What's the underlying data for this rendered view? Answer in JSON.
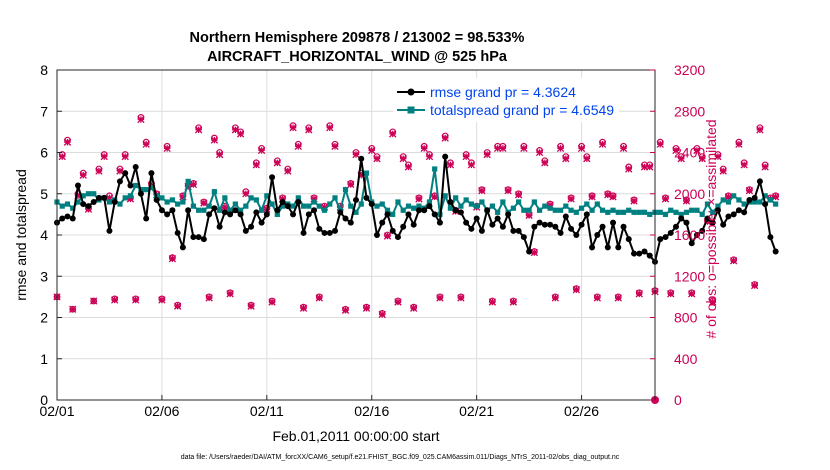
{
  "chart_data": {
    "type": "line",
    "title": "Northern Hemisphere 209878 / 213002 = 98.533%",
    "subtitle": "AIRCRAFT_HORIZONTAL_WIND @ 525 hPa",
    "xlabel": "Feb.01,2011 00:00:00 start",
    "ylabel_left": "rmse and totalspread",
    "ylabel_right": "# of obs: o=possible; ×=assimilated",
    "x_range": [
      0,
      28.5
    ],
    "x_ticks": [
      0,
      5,
      10,
      15,
      20,
      25
    ],
    "x_tick_labels": [
      "02/01",
      "02/06",
      "02/11",
      "02/16",
      "02/21",
      "02/26"
    ],
    "ylim_left": [
      0,
      8
    ],
    "y_ticks_left": [
      0,
      1,
      2,
      3,
      4,
      5,
      6,
      7,
      8
    ],
    "y_tick_labels_left": [
      "0",
      "1",
      "2",
      "3",
      "4",
      "5",
      "6",
      "7",
      "8"
    ],
    "ylim_right": [
      0,
      3200
    ],
    "y_ticks_right": [
      0,
      400,
      800,
      1200,
      1600,
      2000,
      2400,
      2800,
      3200
    ],
    "y_tick_labels_right": [
      "0",
      "400",
      "800",
      "1200",
      "1600",
      "2000",
      "2400",
      "2800",
      "3200"
    ],
    "x_start": 0,
    "x_step": 0.25,
    "series": [
      {
        "name": "rmse grand pr = 4.3624",
        "axis": "left",
        "color": "#000000",
        "values": [
          4.3,
          4.4,
          4.45,
          4.4,
          5.2,
          4.75,
          4.7,
          4.8,
          4.9,
          4.9,
          4.1,
          4.8,
          5.3,
          5.5,
          5.2,
          5.65,
          5.0,
          4.4,
          5.5,
          4.85,
          4.6,
          4.5,
          4.6,
          4.05,
          3.7,
          4.6,
          3.95,
          3.95,
          3.9,
          4.5,
          4.65,
          4.2,
          4.55,
          4.5,
          4.6,
          4.5,
          4.1,
          4.2,
          4.55,
          4.3,
          4.5,
          5.4,
          4.6,
          4.8,
          4.7,
          4.5,
          4.8,
          4.05,
          4.5,
          4.6,
          4.15,
          4.05,
          4.05,
          4.1,
          4.55,
          4.4,
          4.3,
          4.85,
          5.85,
          4.9,
          4.75,
          4.0,
          4.3,
          4.5,
          4.1,
          3.95,
          4.2,
          4.5,
          4.25,
          4.6,
          4.6,
          4.7,
          4.5,
          4.3,
          5.9,
          4.8,
          4.6,
          4.55,
          4.3,
          4.15,
          4.4,
          4.1,
          4.6,
          4.25,
          4.4,
          4.2,
          4.5,
          4.1,
          4.1,
          3.95,
          3.6,
          4.2,
          4.3,
          4.25,
          4.25,
          4.2,
          4.05,
          4.45,
          4.15,
          4.0,
          4.25,
          4.5,
          3.7,
          4.0,
          4.2,
          3.7,
          4.3,
          3.7,
          4.2,
          3.9,
          3.55,
          3.55,
          3.6,
          3.5,
          3.35,
          3.9,
          3.95,
          4.05,
          4.2,
          4.4,
          4.3,
          3.8,
          4.0,
          4.1,
          4.4,
          4.3,
          4.6,
          4.25,
          4.45,
          4.5,
          4.6,
          4.55,
          4.85,
          4.9,
          5.3,
          4.75,
          3.95,
          3.6
        ]
      },
      {
        "name": "totalspread grand pr = 4.6549",
        "axis": "left",
        "color": "#008080",
        "values": [
          4.8,
          4.7,
          4.75,
          4.65,
          4.8,
          4.95,
          5.0,
          5.0,
          4.85,
          4.9,
          4.8,
          4.85,
          4.75,
          4.9,
          4.95,
          5.2,
          5.1,
          5.1,
          5.15,
          4.95,
          4.9,
          4.8,
          4.85,
          4.75,
          4.8,
          5.3,
          4.7,
          4.6,
          4.6,
          4.7,
          5.05,
          4.6,
          4.9,
          4.6,
          4.75,
          4.6,
          4.7,
          4.9,
          4.85,
          4.6,
          4.95,
          4.75,
          4.5,
          4.7,
          4.75,
          4.7,
          4.9,
          4.7,
          4.7,
          4.8,
          4.7,
          4.6,
          4.75,
          4.9,
          4.6,
          5.1,
          4.7,
          4.55,
          4.75,
          5.5,
          4.8,
          4.7,
          4.75,
          4.6,
          4.5,
          4.8,
          4.6,
          4.7,
          4.65,
          4.7,
          4.65,
          4.8,
          5.6,
          4.5,
          4.95,
          4.65,
          4.9,
          4.7,
          4.85,
          4.75,
          4.7,
          4.8,
          4.6,
          4.7,
          4.55,
          4.8,
          4.55,
          4.65,
          4.8,
          4.6,
          4.6,
          4.8,
          4.6,
          4.7,
          4.65,
          4.6,
          4.6,
          4.7,
          4.6,
          4.55,
          4.65,
          4.75,
          4.6,
          4.75,
          4.6,
          4.55,
          4.6,
          4.55,
          4.55,
          4.6,
          4.55,
          4.55,
          4.55,
          4.5,
          4.55,
          4.55,
          4.5,
          4.6,
          4.55,
          4.5,
          4.55,
          4.6,
          4.6,
          4.5,
          4.75,
          4.55,
          4.7,
          4.85,
          4.8,
          4.95,
          4.85,
          4.75,
          4.8,
          4.8,
          4.8,
          4.95,
          4.85,
          4.75
        ]
      },
      {
        "name": "possible observations",
        "axis": "right",
        "color": "#cc0055",
        "marker": "o",
        "values": [
          1000,
          2380,
          2520,
          880,
          2000,
          2200,
          1860,
          960,
          2240,
          2380,
          1980,
          980,
          2240,
          2380,
          1960,
          980,
          2740,
          2500,
          2100,
          2000,
          980,
          2460,
          1380,
          920,
          1980,
          2080,
          2100,
          2640,
          1920,
          1000,
          2540,
          2400,
          1880,
          1040,
          2640,
          2600,
          2020,
          920,
          2300,
          2440,
          1860,
          960,
          2320,
          1960,
          2240,
          2660,
          2480,
          900,
          2640,
          1960,
          1000,
          1880,
          2660,
          2480,
          1880,
          880,
          2100,
          2400,
          2200,
          900,
          2440,
          2360,
          840,
          1600,
          2600,
          960,
          2360,
          2280,
          900,
          1960,
          2460,
          2380,
          1980,
          1000,
          2560,
          2300,
          1840,
          1000,
          2380,
          2300,
          1880,
          2040,
          2400,
          960,
          2460,
          2460,
          2040,
          960,
          2000,
          2460,
          1800,
          1440,
          2420,
          2320,
          1900,
          1000,
          2460,
          2360,
          1960,
          1080,
          2460,
          2360,
          1980,
          1000,
          2500,
          2000,
          1980,
          1000,
          2460,
          2260,
          1940,
          1040,
          2280,
          2280,
          1060,
          2500,
          1960,
          1040,
          2440,
          2360,
          1940,
          1040,
          2440,
          2360,
          1740,
          960,
          2380,
          2240,
          1980,
          1360,
          2500,
          2300,
          2040,
          1120,
          2640,
          2280,
          1960,
          1980
        ]
      },
      {
        "name": "assimilated observations",
        "axis": "right",
        "color": "#cc0055",
        "marker": "x",
        "values": [
          1000,
          2360,
          2500,
          880,
          1980,
          2180,
          1850,
          960,
          2220,
          2360,
          1960,
          970,
          2220,
          2360,
          1950,
          970,
          2720,
          2480,
          2080,
          1990,
          970,
          2440,
          1370,
          910,
          1970,
          2070,
          2090,
          2620,
          1910,
          990,
          2520,
          2380,
          1870,
          1030,
          2620,
          2580,
          2000,
          910,
          2280,
          2420,
          1850,
          950,
          2300,
          1950,
          2220,
          2640,
          2460,
          890,
          2620,
          1950,
          990,
          1870,
          2640,
          2460,
          1870,
          870,
          2090,
          2380,
          2180,
          890,
          2420,
          2340,
          830,
          1590,
          2580,
          950,
          2340,
          2260,
          890,
          1950,
          2440,
          2360,
          1970,
          990,
          2540,
          2280,
          1830,
          990,
          2360,
          2280,
          1870,
          2030,
          2380,
          950,
          2440,
          2440,
          2030,
          950,
          1990,
          2440,
          1790,
          1430,
          2400,
          2300,
          1890,
          990,
          2440,
          2340,
          1950,
          1070,
          2440,
          2340,
          1970,
          990,
          2480,
          1990,
          1970,
          990,
          2440,
          2240,
          1930,
          1030,
          2260,
          2260,
          1050,
          2480,
          1950,
          1030,
          2420,
          2340,
          1930,
          1030,
          2420,
          2340,
          1730,
          950,
          2360,
          2220,
          1970,
          1350,
          2480,
          2280,
          2030,
          1110,
          2620,
          2260,
          1950,
          1970
        ]
      }
    ],
    "footer": "data file: /Users/raeder/DAI/ATM_forcXX/CAM6_setup/f.e21.FHIST_BGC.f09_025.CAM6assim.011/Diags_NTrS_2011-02/obs_diag_output.nc",
    "extra_marker_right": {
      "x": 28.5,
      "value": 0,
      "marker": "filled-circle"
    }
  }
}
